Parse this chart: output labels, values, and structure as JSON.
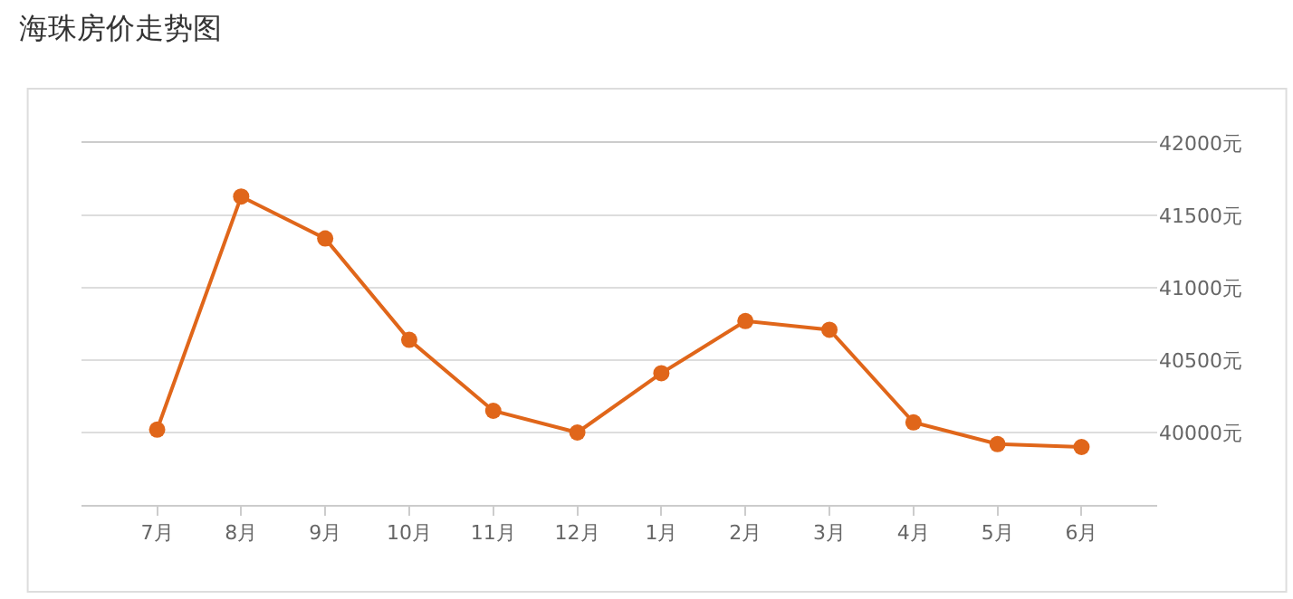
{
  "chart_data": {
    "type": "line",
    "title": "海珠房价走势图",
    "categories": [
      "7月",
      "8月",
      "9月",
      "10月",
      "11月",
      "12月",
      "1月",
      "2月",
      "3月",
      "4月",
      "5月",
      "6月"
    ],
    "series": [
      {
        "color": "#e0661a",
        "values": [
          40020,
          41630,
          41340,
          40640,
          40150,
          40000,
          40410,
          40770,
          40710,
          40070,
          39920,
          39900
        ]
      }
    ],
    "ylim": [
      39500,
      42000
    ],
    "yticks": [
      {
        "value": 40000,
        "label": "40000元"
      },
      {
        "value": 40500,
        "label": "40500元"
      },
      {
        "value": 41000,
        "label": "41000元"
      },
      {
        "value": 41500,
        "label": "41500元"
      },
      {
        "value": 42000,
        "label": "42000元"
      }
    ],
    "grid": "y",
    "marker": "circle",
    "line_style": "solid"
  }
}
